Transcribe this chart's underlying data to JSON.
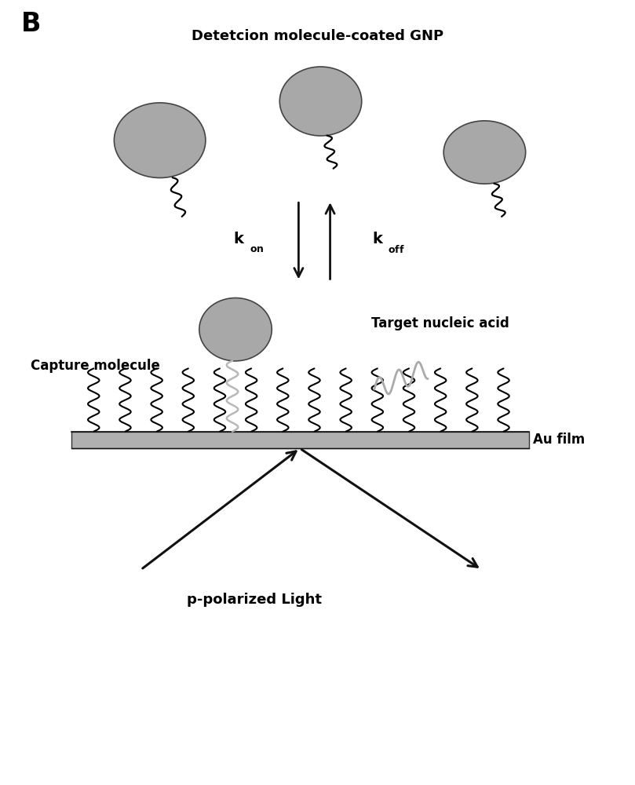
{
  "bg_color": "#ffffff",
  "title_label": "B",
  "gnp_label": "Detetcion molecule-coated GNP",
  "capture_label": "Capture molecule",
  "target_label": "Target nucleic acid",
  "aufilm_label": "Au film",
  "light_label": "p-polarized Light",
  "gnp_color": "#a8a8a8",
  "wavy_color": "#000000",
  "gray_wavy_color": "#b8b8b8",
  "film_color": "#b0b0b0",
  "arrow_color": "#111111",
  "text_color": "#000000",
  "font_size_title": 24,
  "font_size_label": 12,
  "font_size_label_large": 13,
  "xlim": [
    0,
    10
  ],
  "ylim": [
    0,
    13
  ]
}
